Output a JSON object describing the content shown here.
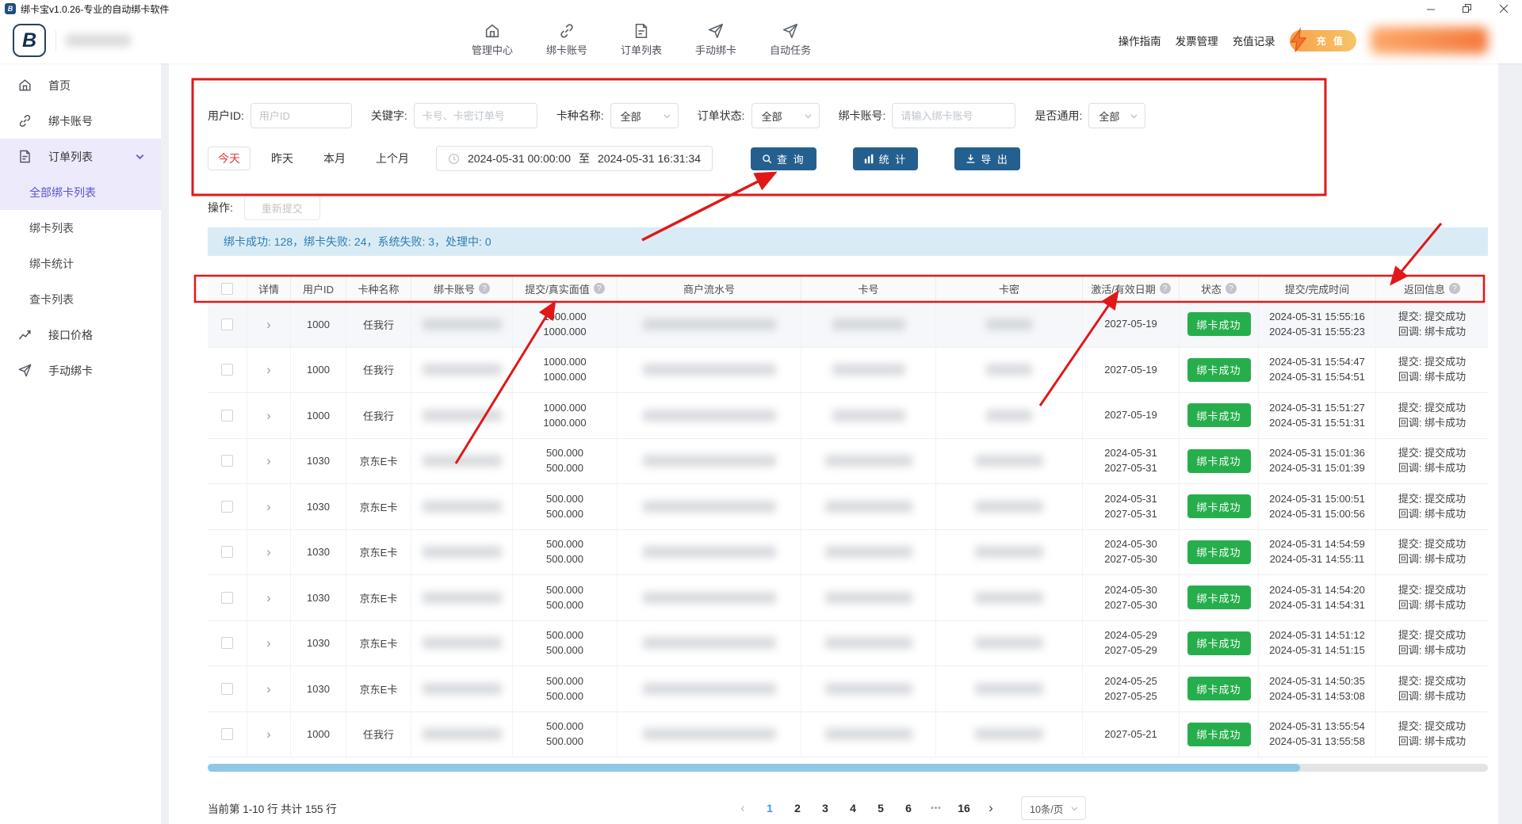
{
  "window": {
    "title": "绑卡宝v1.0.26-专业的自动绑卡软件"
  },
  "header": {
    "logo_glyph": "B",
    "nav_items": [
      {
        "label": "管理中心",
        "icon": "home"
      },
      {
        "label": "绑卡账号",
        "icon": "link"
      },
      {
        "label": "订单列表",
        "icon": "document"
      },
      {
        "label": "手动绑卡",
        "icon": "send"
      },
      {
        "label": "自动任务",
        "icon": "send"
      }
    ],
    "links": [
      {
        "label": "操作指南"
      },
      {
        "label": "发票管理"
      },
      {
        "label": "充值记录"
      }
    ],
    "recharge_button": "充 值"
  },
  "sidebar": {
    "items": [
      {
        "label": "首页",
        "icon": "home"
      },
      {
        "label": "绑卡账号",
        "icon": "link"
      },
      {
        "label": "订单列表",
        "icon": "document",
        "expanded": true
      },
      {
        "label": "接口价格",
        "icon": "trend"
      },
      {
        "label": "手动绑卡",
        "icon": "send"
      }
    ],
    "order_sub_items": [
      {
        "label": "全部绑卡列表",
        "active": true
      },
      {
        "label": "绑卡列表",
        "active": false
      },
      {
        "label": "绑卡统计",
        "active": false
      },
      {
        "label": "查卡列表",
        "active": false
      }
    ]
  },
  "filters": {
    "user_id_label": "用户ID:",
    "user_id_placeholder": "用户ID",
    "keyword_label": "关键字:",
    "keyword_placeholder": "卡号、卡密订单号",
    "card_type_label": "卡种名称:",
    "card_type_value": "全部",
    "order_status_label": "订单状态:",
    "order_status_value": "全部",
    "bind_account_label": "绑卡账号:",
    "bind_account_placeholder": "请输入绑卡账号",
    "common_label": "是否通用:",
    "common_value": "全部",
    "quick_today": "今天",
    "quick_yesterday": "昨天",
    "quick_month": "本月",
    "quick_last_month": "上个月",
    "date_start": "2024-05-31 00:00:00",
    "date_sep": "至",
    "date_end": "2024-05-31 16:31:34",
    "search_button": "查 询",
    "stats_button": "统 计",
    "export_button": "导 出"
  },
  "operation": {
    "label": "操作:",
    "resubmit_button": "重新提交"
  },
  "summary": {
    "text": "绑卡成功: 128，绑卡失败: 24，系统失败: 3，处理中: 0"
  },
  "table": {
    "columns": [
      {
        "label": "",
        "type": "checkbox"
      },
      {
        "label": "详情"
      },
      {
        "label": "用户ID"
      },
      {
        "label": "卡种名称"
      },
      {
        "label": "绑卡账号",
        "help": true
      },
      {
        "label": "提交/真实面值",
        "help": true
      },
      {
        "label": "商户流水号"
      },
      {
        "label": "卡号"
      },
      {
        "label": "卡密"
      },
      {
        "label": "激活/有效日期",
        "help": true
      },
      {
        "label": "状态",
        "help": true
      },
      {
        "label": "提交/完成时间"
      },
      {
        "label": "返回信息",
        "help": true
      }
    ],
    "rows": [
      {
        "user_id": "1000",
        "card_type": "任我行",
        "values": [
          "1000.000",
          "1000.000"
        ],
        "dates": [
          "2027-05-19"
        ],
        "status": "绑卡成功",
        "times": [
          "2024-05-31 15:55:16",
          "2024-05-31 15:55:23"
        ],
        "results": [
          "提交: 提交成功",
          "回调: 绑卡成功"
        ]
      },
      {
        "user_id": "1000",
        "card_type": "任我行",
        "values": [
          "1000.000",
          "1000.000"
        ],
        "dates": [
          "2027-05-19"
        ],
        "status": "绑卡成功",
        "times": [
          "2024-05-31 15:54:47",
          "2024-05-31 15:54:51"
        ],
        "results": [
          "提交: 提交成功",
          "回调: 绑卡成功"
        ]
      },
      {
        "user_id": "1000",
        "card_type": "任我行",
        "values": [
          "1000.000",
          "1000.000"
        ],
        "dates": [
          "2027-05-19"
        ],
        "status": "绑卡成功",
        "times": [
          "2024-05-31 15:51:27",
          "2024-05-31 15:51:31"
        ],
        "results": [
          "提交: 提交成功",
          "回调: 绑卡成功"
        ]
      },
      {
        "user_id": "1030",
        "card_type": "京东E卡",
        "values": [
          "500.000",
          "500.000"
        ],
        "dates": [
          "2024-05-31",
          "2027-05-31"
        ],
        "status": "绑卡成功",
        "times": [
          "2024-05-31 15:01:36",
          "2024-05-31 15:01:39"
        ],
        "results": [
          "提交: 提交成功",
          "回调: 绑卡成功"
        ]
      },
      {
        "user_id": "1030",
        "card_type": "京东E卡",
        "values": [
          "500.000",
          "500.000"
        ],
        "dates": [
          "2024-05-31",
          "2027-05-31"
        ],
        "status": "绑卡成功",
        "times": [
          "2024-05-31 15:00:51",
          "2024-05-31 15:00:56"
        ],
        "results": [
          "提交: 提交成功",
          "回调: 绑卡成功"
        ]
      },
      {
        "user_id": "1030",
        "card_type": "京东E卡",
        "values": [
          "500.000",
          "500.000"
        ],
        "dates": [
          "2024-05-30",
          "2027-05-30"
        ],
        "status": "绑卡成功",
        "times": [
          "2024-05-31 14:54:59",
          "2024-05-31 14:55:11"
        ],
        "results": [
          "提交: 提交成功",
          "回调: 绑卡成功"
        ]
      },
      {
        "user_id": "1030",
        "card_type": "京东E卡",
        "values": [
          "500.000",
          "500.000"
        ],
        "dates": [
          "2024-05-30",
          "2027-05-30"
        ],
        "status": "绑卡成功",
        "times": [
          "2024-05-31 14:54:20",
          "2024-05-31 14:54:31"
        ],
        "results": [
          "提交: 提交成功",
          "回调: 绑卡成功"
        ]
      },
      {
        "user_id": "1030",
        "card_type": "京东E卡",
        "values": [
          "500.000",
          "500.000"
        ],
        "dates": [
          "2024-05-29",
          "2027-05-29"
        ],
        "status": "绑卡成功",
        "times": [
          "2024-05-31 14:51:12",
          "2024-05-31 14:51:15"
        ],
        "results": [
          "提交: 提交成功",
          "回调: 绑卡成功"
        ]
      },
      {
        "user_id": "1030",
        "card_type": "京东E卡",
        "values": [
          "500.000",
          "500.000"
        ],
        "dates": [
          "2024-05-25",
          "2027-05-25"
        ],
        "status": "绑卡成功",
        "times": [
          "2024-05-31 14:50:35",
          "2024-05-31 14:53:08"
        ],
        "results": [
          "提交: 提交成功",
          "回调: 绑卡成功"
        ]
      },
      {
        "user_id": "1000",
        "card_type": "任我行",
        "values": [
          "500.000",
          "500.000"
        ],
        "dates": [
          "2027-05-21"
        ],
        "status": "绑卡成功",
        "times": [
          "2024-05-31 13:55:54",
          "2024-05-31 13:55:58"
        ],
        "results": [
          "提交: 提交成功",
          "回调: 绑卡成功"
        ]
      }
    ]
  },
  "pagination": {
    "info": "当前第 1-10 行 共计 155 行",
    "prev": "‹",
    "next": "›",
    "pages": [
      "1",
      "2",
      "3",
      "4",
      "5",
      "6",
      "•••",
      "16"
    ],
    "active_page": "1",
    "page_size": "10条/页"
  },
  "colors": {
    "accent_blue": "#24608f",
    "success_green": "#27ae4c",
    "summary_bg": "#d9ecf6",
    "active_purple": "#5b51d8",
    "recharge_orange": "#f8a149",
    "annotation_red": "#e01818"
  }
}
